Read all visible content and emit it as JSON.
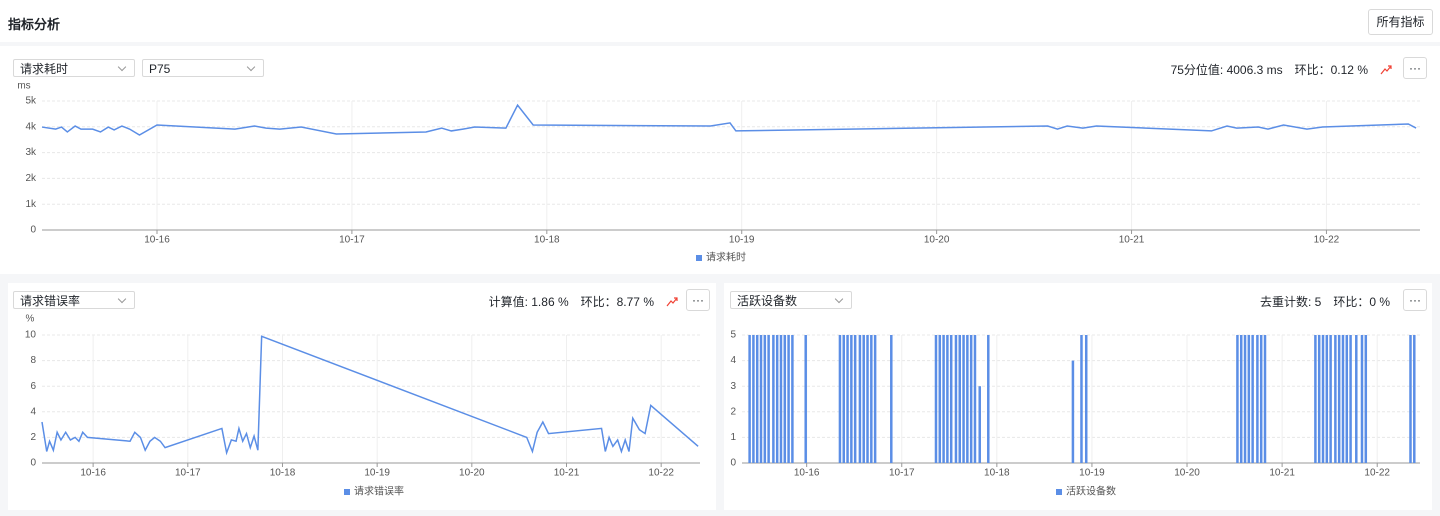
{
  "header": {
    "title": "指标分析",
    "button": "所有指标"
  },
  "panels": [
    {
      "selects": [
        "请求耗时",
        "P75"
      ],
      "stat": "75分位值: 4006.3 ms",
      "change": "环比：0.12 %",
      "more": "···"
    },
    {
      "selects": [
        "请求错误率"
      ],
      "stat": "计算值: 1.86 %",
      "change": "环比：8.77 %",
      "more": "···"
    },
    {
      "selects": [
        "活跃设备数"
      ],
      "stat": "去重计数: 5",
      "change": "环比：0 %",
      "more": "···"
    }
  ],
  "chart_data": [
    {
      "type": "line",
      "y_label": "ms",
      "x": [
        15.41,
        15.48,
        15.51,
        15.54,
        15.58,
        15.61,
        15.67,
        15.71,
        15.75,
        15.78,
        15.82,
        15.86,
        15.91,
        16.0,
        16.4,
        16.5,
        16.56,
        16.63,
        16.74,
        16.92,
        17.38,
        17.46,
        17.51,
        17.57,
        17.63,
        17.79,
        17.85,
        17.93,
        18.84,
        18.94,
        18.97,
        20.57,
        20.62,
        20.67,
        20.75,
        20.82,
        21.41,
        21.49,
        21.54,
        21.65,
        21.7,
        21.78,
        21.9,
        21.98,
        22.42,
        22.46
      ],
      "series": [
        {
          "name": "请求耗时",
          "color": "#5b8ee6",
          "values": [
            3990,
            3910,
            3990,
            3800,
            4030,
            3910,
            3910,
            3800,
            3990,
            3880,
            4030,
            3910,
            3680,
            4070,
            3910,
            4030,
            3950,
            3910,
            3990,
            3720,
            3800,
            3950,
            3840,
            3910,
            3990,
            3950,
            4840,
            4070,
            4030,
            4150,
            3840,
            4030,
            3910,
            4030,
            3950,
            4030,
            3840,
            4030,
            3950,
            3990,
            3910,
            4070,
            3910,
            3990,
            4110,
            3950
          ]
        }
      ],
      "xlim": [
        15.41,
        22.48
      ],
      "xticks": [
        {
          "value": 16,
          "label": "10-16"
        },
        {
          "value": 17,
          "label": "10-17"
        },
        {
          "value": 18,
          "label": "10-18"
        },
        {
          "value": 19,
          "label": "10-19"
        },
        {
          "value": 20,
          "label": "10-20"
        },
        {
          "value": 21,
          "label": "10-21"
        },
        {
          "value": 22,
          "label": "10-22"
        }
      ],
      "ylim": [
        0,
        5000
      ],
      "yticks": [
        0,
        {
          "value": 1000,
          "label": "1k"
        },
        {
          "value": 2000,
          "label": "2k"
        },
        {
          "value": 3000,
          "label": "3k"
        },
        {
          "value": 4000,
          "label": "4k"
        },
        {
          "value": 5000,
          "label": "5k"
        }
      ],
      "grid": true
    },
    {
      "type": "line",
      "y_label": "%",
      "x": [
        15.46,
        15.51,
        15.54,
        15.58,
        15.62,
        15.66,
        15.71,
        15.76,
        15.81,
        15.85,
        15.89,
        15.94,
        16.39,
        16.44,
        16.5,
        16.55,
        16.6,
        16.65,
        16.71,
        16.76,
        17.36,
        17.41,
        17.46,
        17.51,
        17.54,
        17.58,
        17.62,
        17.66,
        17.7,
        17.74,
        17.78,
        20.58,
        20.64,
        20.69,
        20.75,
        20.81,
        21.37,
        21.41,
        21.45,
        21.49,
        21.54,
        21.58,
        21.62,
        21.66,
        21.7,
        21.77,
        21.83,
        21.89,
        22.39
      ],
      "series": [
        {
          "name": "请求错误率",
          "color": "#5b8ee6",
          "values": [
            3.2,
            0.9,
            1.7,
            1.0,
            2.4,
            1.8,
            2.4,
            1.8,
            2.0,
            1.7,
            2.4,
            2.0,
            1.7,
            2.4,
            2.0,
            1.0,
            1.7,
            2.0,
            1.7,
            1.2,
            2.7,
            0.8,
            1.8,
            1.7,
            2.7,
            1.7,
            2.3,
            1.2,
            2.1,
            1.0,
            9.9,
            2.0,
            0.9,
            2.4,
            3.2,
            2.3,
            2.7,
            0.9,
            2.0,
            1.3,
            1.8,
            0.9,
            1.8,
            0.9,
            3.5,
            2.6,
            2.3,
            4.5,
            1.3
          ]
        }
      ],
      "xlim": [
        15.46,
        22.41
      ],
      "xticks": [
        {
          "value": 16,
          "label": "10-16"
        },
        {
          "value": 17,
          "label": "10-17"
        },
        {
          "value": 18,
          "label": "10-18"
        },
        {
          "value": 19,
          "label": "10-19"
        },
        {
          "value": 20,
          "label": "10-20"
        },
        {
          "value": 21,
          "label": "10-21"
        },
        {
          "value": 22,
          "label": "10-22"
        }
      ],
      "ylim": [
        0,
        10
      ],
      "yticks": [
        0,
        2,
        4,
        6,
        8,
        10
      ],
      "grid": true
    },
    {
      "type": "bar",
      "x": [
        15.4,
        15.44,
        15.48,
        15.52,
        15.56,
        15.6,
        15.65,
        15.69,
        15.73,
        15.77,
        15.81,
        15.85,
        15.99,
        16.35,
        16.39,
        16.43,
        16.47,
        16.51,
        16.56,
        16.6,
        16.64,
        16.68,
        16.72,
        16.89,
        17.36,
        17.4,
        17.44,
        17.48,
        17.52,
        17.57,
        17.61,
        17.65,
        17.69,
        17.73,
        17.77,
        17.82,
        17.91,
        18.8,
        18.89,
        18.94,
        20.53,
        20.57,
        20.61,
        20.65,
        20.69,
        20.74,
        20.78,
        20.82,
        21.35,
        21.39,
        21.43,
        21.47,
        21.51,
        21.56,
        21.6,
        21.64,
        21.68,
        21.72,
        21.78,
        21.84,
        21.88,
        22.35,
        22.39
      ],
      "series": [
        {
          "name": "活跃设备数",
          "color": "#5b8ee6",
          "values": [
            5,
            5,
            5,
            5,
            5,
            5,
            5,
            5,
            5,
            5,
            5,
            5,
            5,
            5,
            5,
            5,
            5,
            5,
            5,
            5,
            5,
            5,
            5,
            5,
            5,
            5,
            5,
            5,
            5,
            5,
            5,
            5,
            5,
            5,
            5,
            3,
            5,
            4,
            5,
            5,
            5,
            5,
            5,
            5,
            5,
            5,
            5,
            5,
            5,
            5,
            5,
            5,
            5,
            5,
            5,
            5,
            5,
            5,
            5,
            5,
            5,
            5,
            5
          ]
        }
      ],
      "xlim": [
        15.32,
        22.45
      ],
      "xticks": [
        {
          "value": 16,
          "label": "10-16"
        },
        {
          "value": 17,
          "label": "10-17"
        },
        {
          "value": 18,
          "label": "10-18"
        },
        {
          "value": 19,
          "label": "10-19"
        },
        {
          "value": 20,
          "label": "10-20"
        },
        {
          "value": 21,
          "label": "10-21"
        },
        {
          "value": 22,
          "label": "10-22"
        }
      ],
      "ylim": [
        0,
        5
      ],
      "yticks": [
        0,
        1,
        2,
        3,
        4,
        5
      ],
      "grid": true
    }
  ]
}
